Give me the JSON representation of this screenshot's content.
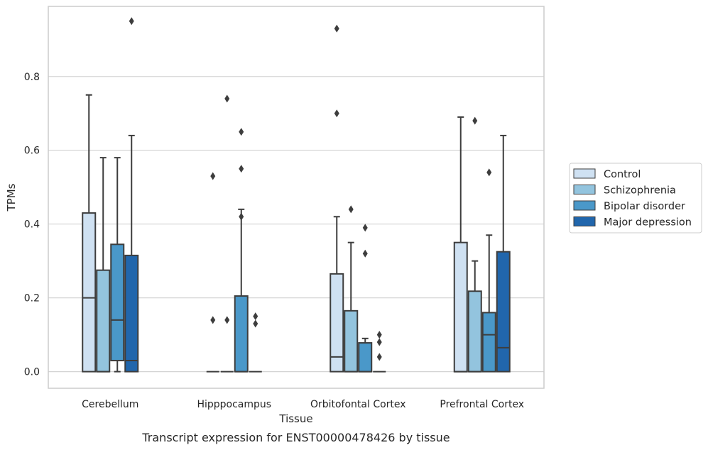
{
  "chart_data": {
    "type": "box",
    "title": "Transcript expression for ENST00000478426 by tissue",
    "xlabel": "Tissue",
    "ylabel": "TPMs",
    "ylim": [
      -0.045,
      0.99
    ],
    "yticks": [
      0.0,
      0.2,
      0.4,
      0.6,
      0.8
    ],
    "ytick_labels": [
      "0.0",
      "0.2",
      "0.4",
      "0.6",
      "0.8"
    ],
    "grid": "horizontal",
    "legend_position": "right",
    "categories": [
      "Cerebellum",
      "Hipppocampus",
      "Orbitofontal Cortex",
      "Prefrontal Cortex"
    ],
    "series": [
      {
        "name": "Control",
        "color": "#cfe1f2",
        "boxes": [
          {
            "whislo": 0.0,
            "q1": 0.0,
            "med": 0.2,
            "q3": 0.43,
            "whishi": 0.75,
            "fliers": []
          },
          {
            "whislo": 0.0,
            "q1": 0.0,
            "med": 0.0,
            "q3": 0.0,
            "whishi": 0.0,
            "fliers": [
              0.53,
              0.14
            ]
          },
          {
            "whislo": 0.0,
            "q1": 0.0,
            "med": 0.04,
            "q3": 0.265,
            "whishi": 0.42,
            "fliers": [
              0.93,
              0.7
            ]
          },
          {
            "whislo": 0.0,
            "q1": 0.0,
            "med": 0.0,
            "q3": 0.35,
            "whishi": 0.69,
            "fliers": []
          }
        ]
      },
      {
        "name": "Schizophrenia",
        "color": "#93c4de",
        "boxes": [
          {
            "whislo": 0.0,
            "q1": 0.0,
            "med": 0.0,
            "q3": 0.275,
            "whishi": 0.58,
            "fliers": []
          },
          {
            "whislo": 0.0,
            "q1": 0.0,
            "med": 0.0,
            "q3": 0.0,
            "whishi": 0.0,
            "fliers": [
              0.74,
              0.14
            ]
          },
          {
            "whislo": 0.0,
            "q1": 0.0,
            "med": 0.0,
            "q3": 0.165,
            "whishi": 0.35,
            "fliers": [
              0.44
            ]
          },
          {
            "whislo": 0.0,
            "q1": 0.0,
            "med": 0.0,
            "q3": 0.218,
            "whishi": 0.3,
            "fliers": [
              0.68
            ]
          }
        ]
      },
      {
        "name": "Bipolar disorder",
        "color": "#4a98c9",
        "boxes": [
          {
            "whislo": 0.0,
            "q1": 0.03,
            "med": 0.14,
            "q3": 0.345,
            "whishi": 0.58,
            "fliers": []
          },
          {
            "whislo": 0.0,
            "q1": 0.0,
            "med": 0.0,
            "q3": 0.205,
            "whishi": 0.44,
            "fliers": [
              0.65,
              0.55,
              0.42
            ]
          },
          {
            "whislo": 0.0,
            "q1": 0.0,
            "med": 0.0,
            "q3": 0.078,
            "whishi": 0.09,
            "fliers": [
              0.39,
              0.32
            ]
          },
          {
            "whislo": 0.0,
            "q1": 0.0,
            "med": 0.1,
            "q3": 0.16,
            "whishi": 0.37,
            "fliers": [
              0.54
            ]
          }
        ]
      },
      {
        "name": "Major depression",
        "color": "#2166ac",
        "boxes": [
          {
            "whislo": 0.0,
            "q1": 0.0,
            "med": 0.03,
            "q3": 0.315,
            "whishi": 0.64,
            "fliers": [
              0.95
            ]
          },
          {
            "whislo": 0.0,
            "q1": 0.0,
            "med": 0.0,
            "q3": 0.0,
            "whishi": 0.0,
            "fliers": [
              0.15,
              0.13
            ]
          },
          {
            "whislo": 0.0,
            "q1": 0.0,
            "med": 0.0,
            "q3": 0.0,
            "whishi": 0.0,
            "fliers": [
              0.1,
              0.08,
              0.04
            ]
          },
          {
            "whislo": 0.0,
            "q1": 0.0,
            "med": 0.065,
            "q3": 0.325,
            "whishi": 0.64,
            "fliers": []
          }
        ]
      }
    ]
  }
}
